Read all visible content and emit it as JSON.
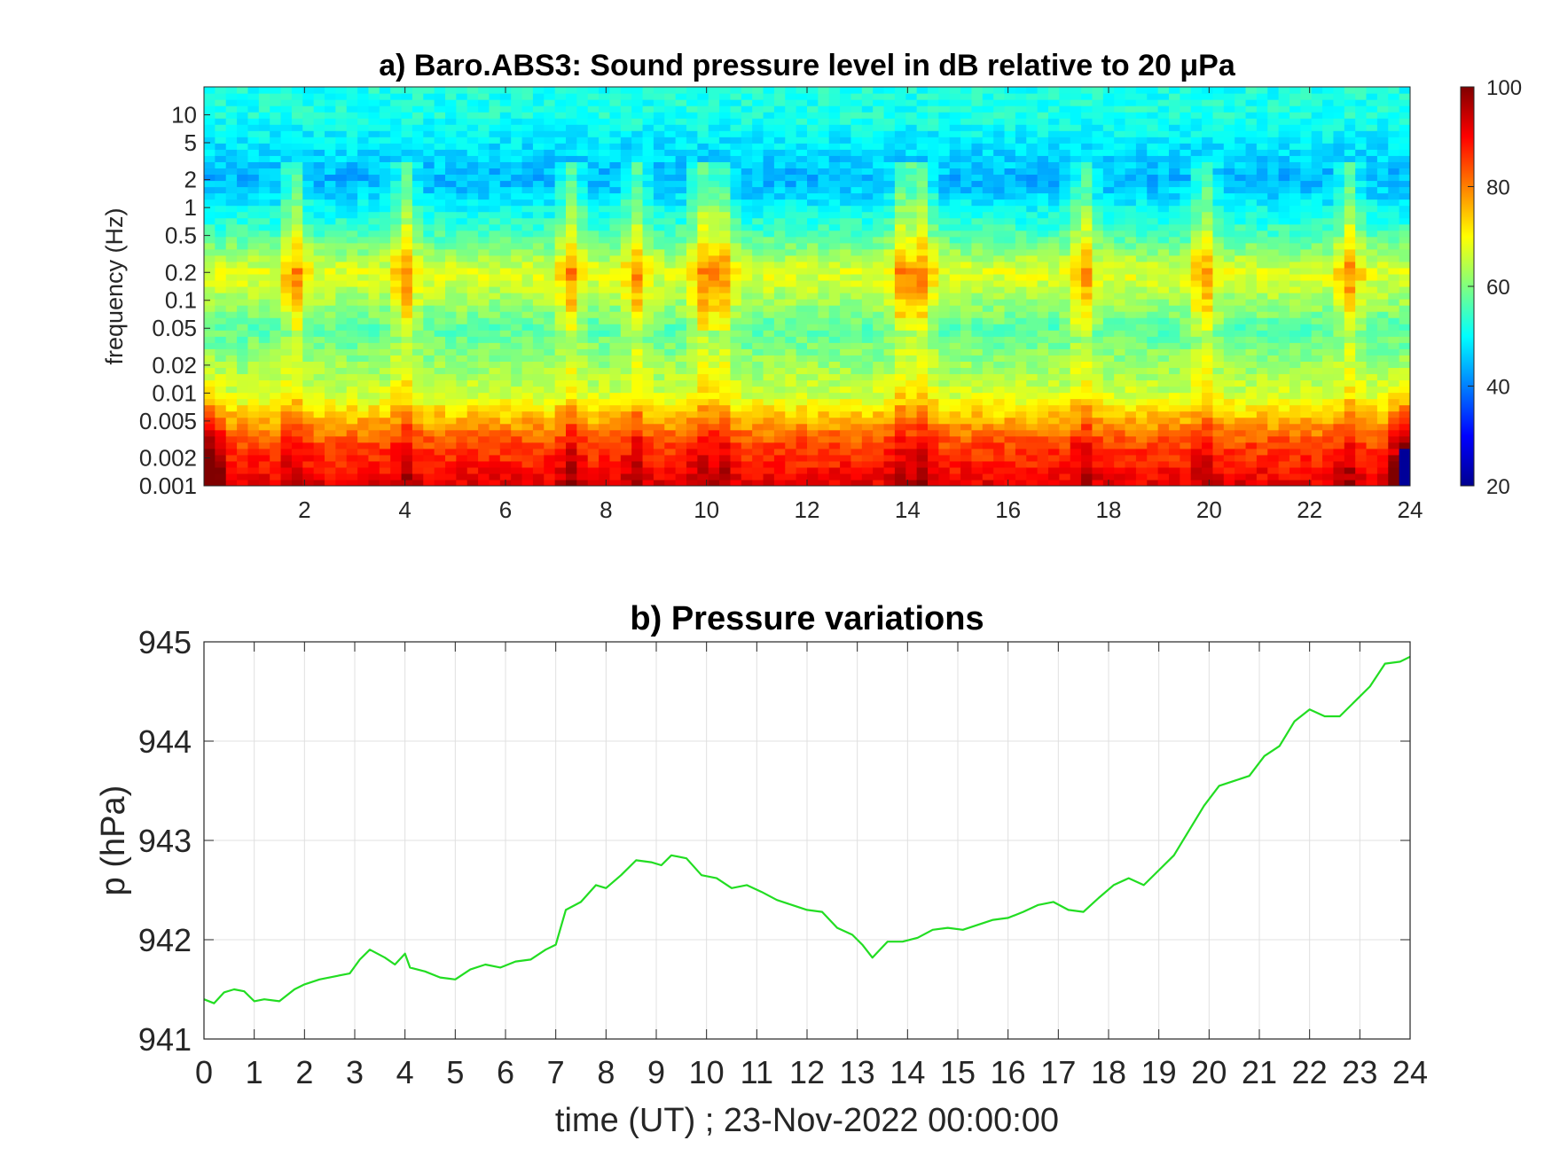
{
  "chart_data": [
    {
      "type": "heatmap",
      "title": "a) Baro.ABS3: Sound pressure level in dB relative to 20 μPa",
      "ylabel": "frequency (Hz)",
      "xlabel": "",
      "y_scale": "log",
      "xlim": [
        0,
        24
      ],
      "ylim": [
        0.001,
        20
      ],
      "x_ticks": [
        "2",
        "4",
        "6",
        "8",
        "10",
        "12",
        "14",
        "16",
        "18",
        "20",
        "22",
        "24"
      ],
      "y_ticks": [
        "0.001",
        "0.002",
        "0.005",
        "0.01",
        "0.02",
        "0.05",
        "0.1",
        "0.2",
        "0.5",
        "1",
        "2",
        "5",
        "10"
      ],
      "colorbar": {
        "colormap": "jet",
        "range": [
          20,
          100
        ],
        "ticks": [
          "20",
          "40",
          "60",
          "80",
          "100"
        ]
      },
      "bands_db": [
        {
          "freq_hz": 10,
          "db": 52
        },
        {
          "freq_hz": 2,
          "db": 44
        },
        {
          "freq_hz": 0.5,
          "db": 56
        },
        {
          "freq_hz": 0.2,
          "db": 68
        },
        {
          "freq_hz": 0.05,
          "db": 57
        },
        {
          "freq_hz": 0.01,
          "db": 66
        },
        {
          "freq_hz": 0.003,
          "db": 84
        },
        {
          "freq_hz": 0.001,
          "db": 92
        }
      ],
      "bursts_hours": [
        1.8,
        4.0,
        7.3,
        8.6,
        9.9,
        10.3,
        13.9,
        14.3,
        17.5,
        19.9,
        22.8
      ]
    },
    {
      "type": "line",
      "title": "b) Pressure variations",
      "xlabel": "time (UT) ; 23-Nov-2022 00:00:00",
      "ylabel": "p (hPa)",
      "xlim": [
        0,
        24
      ],
      "ylim": [
        941,
        945
      ],
      "grid": true,
      "x_ticks": [
        "0",
        "1",
        "2",
        "3",
        "4",
        "5",
        "6",
        "7",
        "8",
        "9",
        "10",
        "11",
        "12",
        "13",
        "14",
        "15",
        "16",
        "17",
        "18",
        "19",
        "20",
        "21",
        "22",
        "23",
        "24"
      ],
      "y_ticks": [
        "941",
        "942",
        "943",
        "944",
        "945"
      ],
      "line_color": "#22dd22",
      "series": [
        {
          "x": [
            0,
            0.2,
            0.4,
            0.6,
            0.8,
            1.0,
            1.2,
            1.5,
            1.8,
            2.0,
            2.3,
            2.6,
            2.9,
            3.1,
            3.3,
            3.6,
            3.8,
            4.0,
            4.1,
            4.4,
            4.7,
            5.0,
            5.3,
            5.6,
            5.9,
            6.2,
            6.5,
            6.8,
            7.0,
            7.2,
            7.5,
            7.8,
            8.0,
            8.3,
            8.6,
            8.9,
            9.1,
            9.3,
            9.6,
            9.9,
            10.2,
            10.5,
            10.8,
            11.1,
            11.4,
            11.7,
            12.0,
            12.3,
            12.6,
            12.9,
            13.1,
            13.3,
            13.6,
            13.9,
            14.2,
            14.5,
            14.8,
            15.1,
            15.4,
            15.7,
            16.0,
            16.3,
            16.6,
            16.9,
            17.2,
            17.5,
            17.8,
            18.1,
            18.4,
            18.7,
            19.0,
            19.3,
            19.6,
            19.9,
            20.2,
            20.5,
            20.8,
            21.1,
            21.4,
            21.7,
            22.0,
            22.3,
            22.6,
            22.9,
            23.2,
            23.5,
            23.8,
            24.0
          ],
          "y": [
            941.4,
            941.36,
            941.47,
            941.5,
            941.48,
            941.38,
            941.4,
            941.38,
            941.5,
            941.55,
            941.6,
            941.63,
            941.66,
            941.8,
            941.9,
            941.82,
            941.75,
            941.86,
            941.72,
            941.68,
            941.62,
            941.6,
            941.7,
            941.75,
            941.72,
            941.78,
            941.8,
            941.9,
            941.95,
            942.3,
            942.38,
            942.55,
            942.52,
            942.65,
            942.8,
            942.78,
            942.75,
            942.85,
            942.82,
            942.65,
            942.62,
            942.52,
            942.55,
            942.48,
            942.4,
            942.35,
            942.3,
            942.28,
            942.12,
            942.05,
            941.95,
            941.82,
            941.98,
            941.98,
            942.02,
            942.1,
            942.12,
            942.1,
            942.15,
            942.2,
            942.22,
            942.28,
            942.35,
            942.38,
            942.3,
            942.28,
            942.42,
            942.55,
            942.62,
            942.55,
            942.7,
            942.85,
            943.1,
            943.35,
            943.55,
            943.6,
            943.65,
            943.85,
            943.95,
            944.2,
            944.32,
            944.25,
            944.25,
            944.4,
            944.55,
            944.78,
            944.8,
            944.85
          ]
        }
      ]
    }
  ]
}
